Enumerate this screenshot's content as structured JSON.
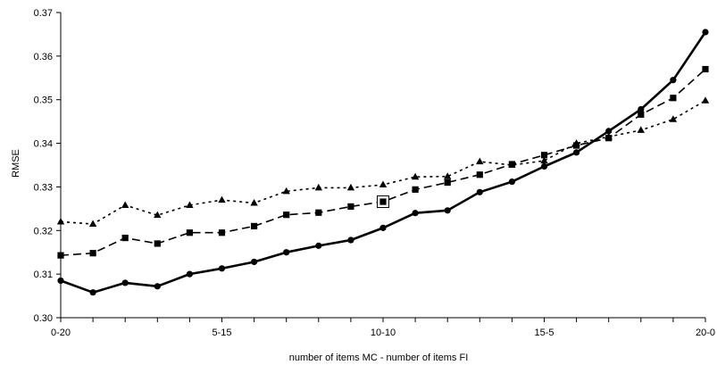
{
  "chart_data": {
    "type": "line",
    "title": "",
    "xlabel": "number of items MC - number of items FI",
    "ylabel": "RMSE",
    "ylim": [
      0.3,
      0.37
    ],
    "yticks": [
      "0.30",
      "0.31",
      "0.32",
      "0.33",
      "0.34",
      "0.35",
      "0.36",
      "0.37"
    ],
    "x": [
      0,
      1,
      2,
      3,
      4,
      5,
      6,
      7,
      8,
      9,
      10,
      11,
      12,
      13,
      14,
      15,
      16,
      17,
      18,
      19,
      20
    ],
    "xtick_positions": [
      0,
      5,
      10,
      15,
      20
    ],
    "xticks": [
      "0-20",
      "5-15",
      "10-10",
      "15-5",
      "20-0"
    ],
    "grid": false,
    "legend": "none",
    "series": [
      {
        "marker": "circle",
        "style": "solid",
        "color": "#000000",
        "values": [
          0.3085,
          0.3058,
          0.308,
          0.3072,
          0.31,
          0.3113,
          0.3128,
          0.315,
          0.3165,
          0.3178,
          0.3206,
          0.324,
          0.3246,
          0.3288,
          0.3312,
          0.3347,
          0.3379,
          0.3428,
          0.3478,
          0.3545,
          0.3655
        ]
      },
      {
        "marker": "square",
        "style": "dashed",
        "color": "#000000",
        "values": [
          0.3143,
          0.3148,
          0.3183,
          0.317,
          0.3195,
          0.3195,
          0.321,
          0.3236,
          0.3241,
          0.3255,
          0.3266,
          0.3294,
          0.331,
          0.3328,
          0.3352,
          0.3373,
          0.3395,
          0.3412,
          0.3466,
          0.3504,
          0.357
        ]
      },
      {
        "marker": "triangle",
        "style": "dotted",
        "color": "#000000",
        "values": [
          0.322,
          0.3215,
          0.3258,
          0.3235,
          0.3258,
          0.327,
          0.3263,
          0.329,
          0.3298,
          0.3298,
          0.3305,
          0.3323,
          0.3324,
          0.3358,
          0.335,
          0.336,
          0.34,
          0.3415,
          0.343,
          0.3455,
          0.3498
        ]
      }
    ],
    "highlight": {
      "series": 1,
      "index": 10,
      "marker": "boxed-square"
    }
  }
}
